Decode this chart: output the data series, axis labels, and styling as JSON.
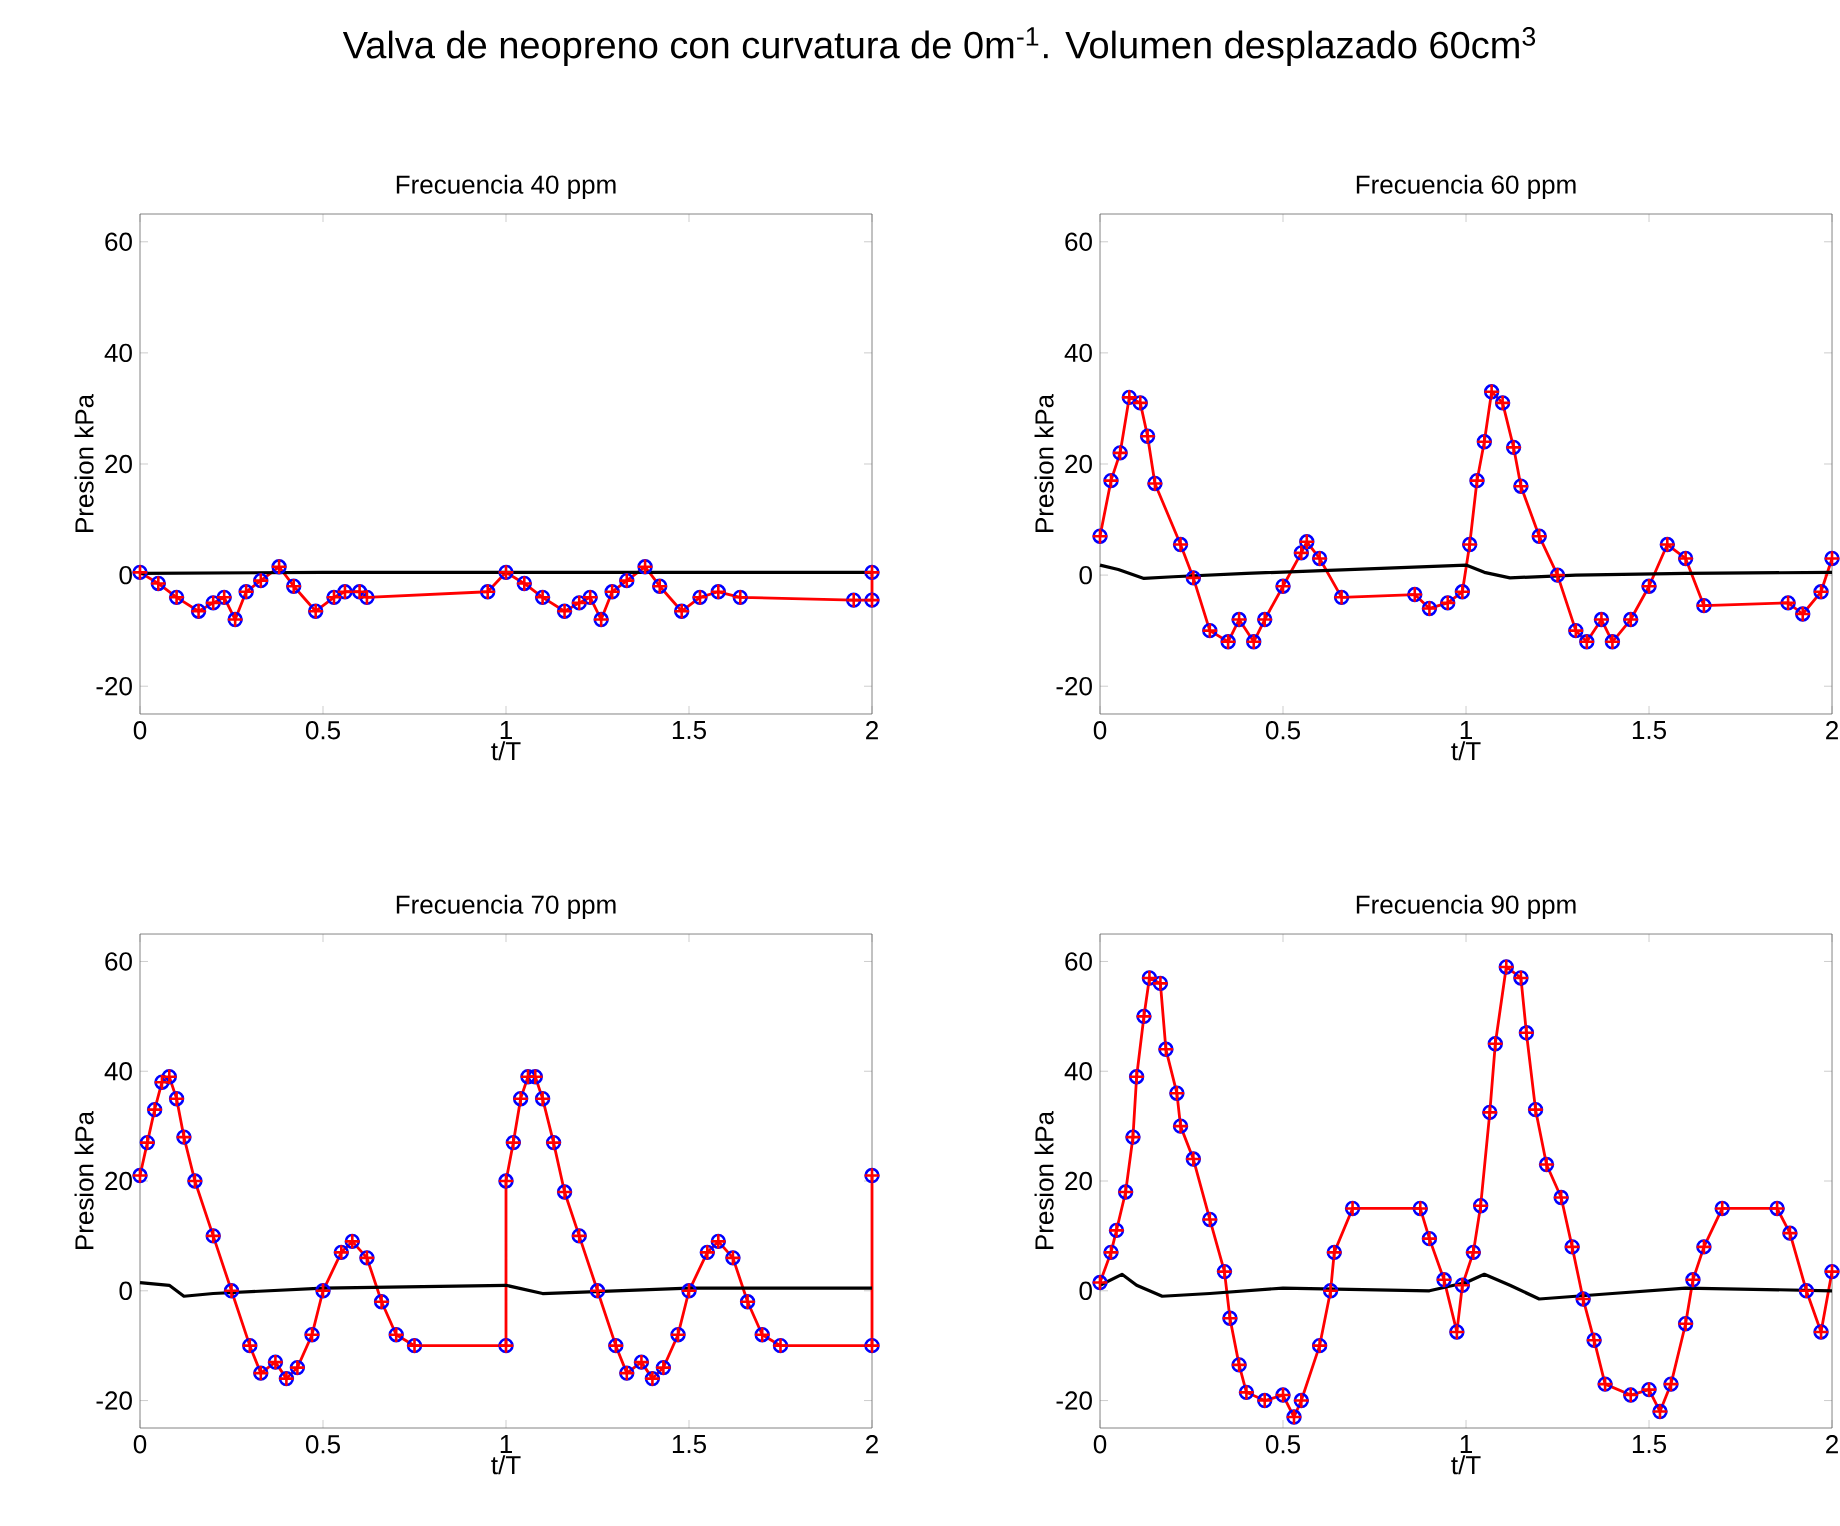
{
  "chart_data": [
    {
      "type": "line",
      "title": "Frecuencia 40 ppm",
      "xlabel": "t/T",
      "ylabel": "Presion  kPa",
      "xlim": [
        0,
        2
      ],
      "ylim": [
        -25,
        65
      ],
      "xticks": [
        0,
        0.5,
        1,
        1.5,
        2
      ],
      "yticks": [
        -20,
        0,
        20,
        40,
        60
      ],
      "annotations": [
        "Valva de neopreno con curvatura de 0m$^{-1}$. Volumen desplazado 60cm$^{3}$"
      ],
      "series": [
        {
          "type": "scatter",
          "marker": "circle",
          "color": "#0000ff",
          "x": [
            0,
            0.05,
            0.1,
            0.16,
            0.2,
            0.23,
            0.26,
            0.29,
            0.33,
            0.38,
            0.42,
            0.48,
            0.53,
            0.56,
            0.6,
            0.62,
            0.95,
            1.0,
            1.05,
            1.1,
            1.16,
            1.2,
            1.23,
            1.26,
            1.29,
            1.33,
            1.38,
            1.42,
            1.48,
            1.53,
            1.58,
            1.64,
            1.95,
            2.0,
            2.0
          ],
          "values": [
            0.5,
            -1.5,
            -4,
            -6.5,
            -5,
            -4,
            -8,
            -3,
            -1,
            1.5,
            -2,
            -6.5,
            -4,
            -3,
            -3,
            -4,
            -3,
            0.5,
            -1.5,
            -4,
            -6.5,
            -5,
            -4,
            -8,
            -3,
            -1,
            1.5,
            -2,
            -6.5,
            -4,
            -3,
            -4,
            -4.5,
            -4.5,
            0.5
          ]
        },
        {
          "marker": "cross",
          "line_style": "solid",
          "color": "#ff0000",
          "x": [
            0,
            0.05,
            0.1,
            0.16,
            0.2,
            0.23,
            0.26,
            0.29,
            0.33,
            0.38,
            0.42,
            0.48,
            0.53,
            0.56,
            0.6,
            0.62,
            0.95,
            1.0,
            1.05,
            1.1,
            1.16,
            1.2,
            1.23,
            1.26,
            1.29,
            1.33,
            1.38,
            1.42,
            1.48,
            1.53,
            1.58,
            1.64,
            1.95,
            2.0,
            2.0
          ],
          "values": [
            0.5,
            -1.5,
            -4,
            -6.5,
            -5,
            -4,
            -8,
            -3,
            -1,
            1.5,
            -2,
            -6.5,
            -4,
            -3,
            -3,
            -4,
            -3,
            0.5,
            -1.5,
            -4,
            -6.5,
            -5,
            -4,
            -8,
            -3,
            -1,
            1.5,
            -2,
            -6.5,
            -4,
            -3,
            -4,
            -4.5,
            -4.5,
            0.5
          ]
        },
        {
          "marker": "none",
          "line_style": "solid",
          "color": "#000000",
          "x": [
            0,
            0.5,
            1,
            1.5,
            2
          ],
          "values": [
            0.3,
            0.5,
            0.5,
            0.5,
            0.5
          ]
        }
      ]
    },
    {
      "type": "line",
      "title": "Frecuencia 60 ppm",
      "xlabel": "t/T",
      "ylabel": "Presion  kPa",
      "xlim": [
        0,
        2
      ],
      "ylim": [
        -25,
        65
      ],
      "xticks": [
        0,
        0.5,
        1,
        1.5,
        2
      ],
      "yticks": [
        -20,
        0,
        20,
        40,
        60
      ],
      "series": [
        {
          "type": "scatter",
          "marker": "circle",
          "color": "#0000ff",
          "x": [
            0,
            0.03,
            0.055,
            0.08,
            0.11,
            0.13,
            0.15,
            0.22,
            0.255,
            0.3,
            0.35,
            0.38,
            0.42,
            0.45,
            0.5,
            0.55,
            0.565,
            0.6,
            0.66,
            0.86,
            0.9,
            0.95,
            0.99,
            1.01,
            1.03,
            1.05,
            1.07,
            1.1,
            1.13,
            1.15,
            1.2,
            1.25,
            1.3,
            1.33,
            1.37,
            1.4,
            1.45,
            1.5,
            1.55,
            1.6,
            1.65,
            1.88,
            1.92,
            1.97,
            2.0
          ],
          "values": [
            7,
            17,
            22,
            32,
            31,
            25,
            16.5,
            5.5,
            -0.5,
            -10,
            -12,
            -8,
            -12,
            -8,
            -2,
            4,
            6,
            3,
            -4,
            -3.5,
            -6,
            -5,
            -3,
            5.5,
            17,
            24,
            33,
            31,
            23,
            16,
            7,
            0,
            -10,
            -12,
            -8,
            -12,
            -8,
            -2,
            5.5,
            3,
            -5.5,
            -5,
            -7,
            -3,
            3
          ]
        },
        {
          "marker": "cross",
          "line_style": "solid",
          "color": "#ff0000",
          "x": [
            0,
            0.03,
            0.055,
            0.08,
            0.11,
            0.13,
            0.15,
            0.22,
            0.255,
            0.3,
            0.35,
            0.38,
            0.42,
            0.45,
            0.5,
            0.55,
            0.565,
            0.6,
            0.66,
            0.86,
            0.9,
            0.95,
            0.99,
            1.01,
            1.03,
            1.05,
            1.07,
            1.1,
            1.13,
            1.15,
            1.2,
            1.25,
            1.3,
            1.33,
            1.37,
            1.4,
            1.45,
            1.5,
            1.55,
            1.6,
            1.65,
            1.88,
            1.92,
            1.97,
            2.0
          ],
          "values": [
            7,
            17,
            22,
            32,
            31,
            25,
            16.5,
            5.5,
            -0.5,
            -10,
            -12,
            -8,
            -12,
            -8,
            -2,
            4,
            6,
            3,
            -4,
            -3.5,
            -6,
            -5,
            -3,
            5.5,
            17,
            24,
            33,
            31,
            23,
            16,
            7,
            0,
            -10,
            -12,
            -8,
            -12,
            -8,
            -2,
            5.5,
            3,
            -5.5,
            -5,
            -7,
            -3,
            3
          ]
        },
        {
          "marker": "none",
          "line_style": "solid",
          "color": "#000000",
          "x": [
            0,
            0.05,
            0.12,
            0.2,
            0.4,
            1.0,
            1.05,
            1.12,
            1.3,
            1.6,
            2
          ],
          "values": [
            1.8,
            1,
            -0.6,
            -0.3,
            0.3,
            1.8,
            0.5,
            -0.5,
            0,
            0.3,
            0.5
          ]
        }
      ]
    },
    {
      "type": "line",
      "title": "Frecuencia 70 ppm",
      "xlabel": "t/T",
      "ylabel": "Presion  kPa",
      "xlim": [
        0,
        2
      ],
      "ylim": [
        -25,
        65
      ],
      "xticks": [
        0,
        0.5,
        1,
        1.5,
        2
      ],
      "yticks": [
        -20,
        0,
        20,
        40,
        60
      ],
      "series": [
        {
          "type": "scatter",
          "marker": "circle",
          "color": "#0000ff",
          "x": [
            0,
            0.02,
            0.04,
            0.06,
            0.08,
            0.1,
            0.12,
            0.15,
            0.2,
            0.25,
            0.3,
            0.33,
            0.37,
            0.4,
            0.43,
            0.47,
            0.5,
            0.55,
            0.58,
            0.62,
            0.66,
            0.7,
            0.75,
            1.0,
            1.0,
            1.02,
            1.04,
            1.06,
            1.08,
            1.1,
            1.13,
            1.16,
            1.2,
            1.25,
            1.3,
            1.33,
            1.37,
            1.4,
            1.43,
            1.47,
            1.5,
            1.55,
            1.58,
            1.62,
            1.66,
            1.7,
            1.75,
            2.0,
            2.0
          ],
          "values": [
            21,
            27,
            33,
            38,
            39,
            35,
            28,
            20,
            10,
            0,
            -10,
            -15,
            -13,
            -16,
            -14,
            -8,
            0,
            7,
            9,
            6,
            -2,
            -8,
            -10,
            -10,
            20,
            27,
            35,
            39,
            39,
            35,
            27,
            18,
            10,
            0,
            -10,
            -15,
            -13,
            -16,
            -14,
            -8,
            0,
            7,
            9,
            6,
            -2,
            -8,
            -10,
            -10,
            21
          ]
        },
        {
          "marker": "cross",
          "line_style": "solid",
          "color": "#ff0000",
          "x": [
            0,
            0.02,
            0.04,
            0.06,
            0.08,
            0.1,
            0.12,
            0.15,
            0.2,
            0.25,
            0.3,
            0.33,
            0.37,
            0.4,
            0.43,
            0.47,
            0.5,
            0.55,
            0.58,
            0.62,
            0.66,
            0.7,
            0.75,
            1.0,
            1.0,
            1.02,
            1.04,
            1.06,
            1.08,
            1.1,
            1.13,
            1.16,
            1.2,
            1.25,
            1.3,
            1.33,
            1.37,
            1.4,
            1.43,
            1.47,
            1.5,
            1.55,
            1.58,
            1.62,
            1.66,
            1.7,
            1.75,
            2.0,
            2.0
          ],
          "values": [
            21,
            27,
            33,
            38,
            39,
            35,
            28,
            20,
            10,
            0,
            -10,
            -15,
            -13,
            -16,
            -14,
            -8,
            0,
            7,
            9,
            6,
            -2,
            -8,
            -10,
            -10,
            20,
            27,
            35,
            39,
            39,
            35,
            27,
            18,
            10,
            0,
            -10,
            -15,
            -13,
            -16,
            -14,
            -8,
            0,
            7,
            9,
            6,
            -2,
            -8,
            -10,
            -10,
            21
          ]
        },
        {
          "marker": "none",
          "line_style": "solid",
          "color": "#000000",
          "x": [
            0,
            0.08,
            0.12,
            0.2,
            0.5,
            1.0,
            1.1,
            1.5,
            2
          ],
          "values": [
            1.5,
            1,
            -1,
            -0.5,
            0.5,
            1,
            -0.5,
            0.5,
            0.5
          ]
        }
      ]
    },
    {
      "type": "line",
      "title": "Frecuencia 90 ppm",
      "xlabel": "t/T",
      "ylabel": "Presion  kPa",
      "xlim": [
        0,
        2
      ],
      "ylim": [
        -25,
        65
      ],
      "xticks": [
        0,
        0.5,
        1,
        1.5,
        2
      ],
      "yticks": [
        -20,
        0,
        20,
        40,
        60
      ],
      "series": [
        {
          "type": "scatter",
          "marker": "circle",
          "color": "#0000ff",
          "x": [
            0,
            0.03,
            0.045,
            0.07,
            0.09,
            0.1,
            0.12,
            0.135,
            0.165,
            0.18,
            0.21,
            0.22,
            0.255,
            0.3,
            0.34,
            0.355,
            0.38,
            0.4,
            0.45,
            0.5,
            0.53,
            0.55,
            0.6,
            0.63,
            0.64,
            0.69,
            0.875,
            0.9,
            0.94,
            0.975,
            0.99,
            1.02,
            1.04,
            1.065,
            1.08,
            1.11,
            1.15,
            1.165,
            1.19,
            1.22,
            1.26,
            1.29,
            1.32,
            1.35,
            1.38,
            1.45,
            1.5,
            1.53,
            1.56,
            1.6,
            1.62,
            1.65,
            1.7,
            1.85,
            1.885,
            1.93,
            1.97,
            2.0
          ],
          "values": [
            1.5,
            7,
            11,
            18,
            28,
            39,
            50,
            57,
            56,
            44,
            36,
            30,
            24,
            13,
            3.5,
            -5,
            -13.5,
            -18.5,
            -20,
            -19,
            -23,
            -20,
            -10,
            0,
            7,
            15,
            15,
            9.5,
            2,
            -7.5,
            1,
            7,
            15.5,
            32.5,
            45,
            59,
            57,
            47,
            33,
            23,
            17,
            8,
            -1.5,
            -9,
            -17,
            -19,
            -18,
            -22,
            -17,
            -6,
            2,
            8,
            15,
            15,
            10.5,
            0,
            -7.5,
            3.5
          ]
        },
        {
          "marker": "cross",
          "line_style": "solid",
          "color": "#ff0000",
          "x": [
            0,
            0.03,
            0.045,
            0.07,
            0.09,
            0.1,
            0.12,
            0.135,
            0.165,
            0.18,
            0.21,
            0.22,
            0.255,
            0.3,
            0.34,
            0.355,
            0.38,
            0.4,
            0.45,
            0.5,
            0.53,
            0.55,
            0.6,
            0.63,
            0.64,
            0.69,
            0.875,
            0.9,
            0.94,
            0.975,
            0.99,
            1.02,
            1.04,
            1.065,
            1.08,
            1.11,
            1.15,
            1.165,
            1.19,
            1.22,
            1.26,
            1.29,
            1.32,
            1.35,
            1.38,
            1.45,
            1.5,
            1.53,
            1.56,
            1.6,
            1.62,
            1.65,
            1.7,
            1.85,
            1.885,
            1.93,
            1.97,
            2.0
          ],
          "values": [
            1.5,
            7,
            11,
            18,
            28,
            39,
            50,
            57,
            56,
            44,
            36,
            30,
            24,
            13,
            3.5,
            -5,
            -13.5,
            -18.5,
            -20,
            -19,
            -23,
            -20,
            -10,
            0,
            7,
            15,
            15,
            9.5,
            2,
            -7.5,
            1,
            7,
            15.5,
            32.5,
            45,
            59,
            57,
            47,
            33,
            23,
            17,
            8,
            -1.5,
            -9,
            -17,
            -19,
            -18,
            -22,
            -17,
            -6,
            2,
            8,
            15,
            15,
            10.5,
            0,
            -7.5,
            3.5
          ]
        },
        {
          "marker": "none",
          "line_style": "solid",
          "color": "#000000",
          "x": [
            0,
            0.06,
            0.1,
            0.17,
            0.3,
            0.5,
            0.9,
            1.0,
            1.05,
            1.12,
            1.2,
            1.4,
            1.6,
            2
          ],
          "values": [
            1,
            3,
            1,
            -1,
            -0.5,
            0.5,
            0,
            1.5,
            3,
            1,
            -1.5,
            -0.5,
            0.5,
            0
          ]
        }
      ]
    }
  ]
}
